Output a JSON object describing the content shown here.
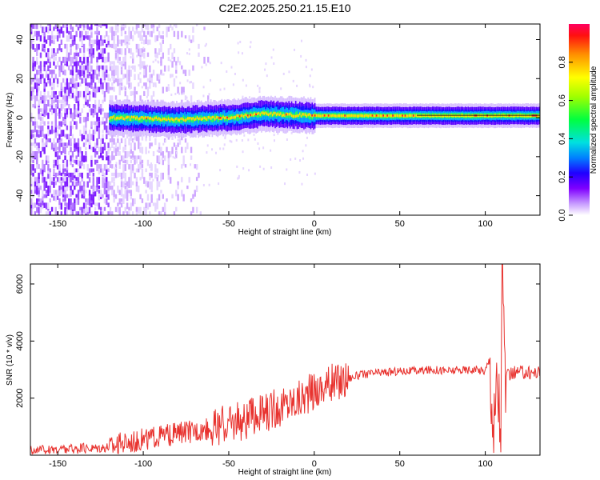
{
  "title": "C2E2.2025.250.21.15.E10",
  "chart_data": [
    {
      "type": "heatmap",
      "xlabel": "Height of straight line (km)",
      "ylabel": "Frequency (Hz)",
      "xlim": [
        -166,
        132
      ],
      "ylim": [
        -50,
        48
      ],
      "xticks": [
        -150,
        -100,
        -50,
        0,
        50,
        100
      ],
      "yticks": [
        -40,
        -20,
        0,
        20,
        40
      ],
      "colorbar": {
        "label": "Normalized spectral amplitude",
        "range": [
          0,
          1
        ],
        "ticks": [
          0.0,
          0.2,
          0.4,
          0.6,
          0.8
        ]
      },
      "description_points": {
        "noise_region_x": [
          -166,
          -120
        ],
        "band_center_hz": [
          {
            "x": -120,
            "f": 0
          },
          {
            "x": -80,
            "f": -1
          },
          {
            "x": -50,
            "f": 0
          },
          {
            "x": -30,
            "f": 2
          },
          {
            "x": 0,
            "f": 1
          },
          {
            "x": 50,
            "f": 1
          },
          {
            "x": 100,
            "f": 1
          },
          {
            "x": 132,
            "f": 1
          }
        ]
      }
    },
    {
      "type": "line",
      "xlabel": "Height of straight line (km)",
      "ylabel": "SNR (10 * v/v)",
      "xlim": [
        -166,
        132
      ],
      "ylim": [
        0,
        6700
      ],
      "xticks": [
        -150,
        -100,
        -50,
        0,
        50,
        100
      ],
      "yticks": [
        2000,
        4000,
        6000
      ],
      "color": "#e8322e",
      "series": [
        {
          "name": "SNR",
          "x": [
            -166,
            -150,
            -130,
            -120,
            -110,
            -100,
            -90,
            -80,
            -70,
            -60,
            -50,
            -40,
            -30,
            -20,
            -10,
            0,
            10,
            20,
            30,
            40,
            50,
            60,
            70,
            80,
            90,
            95,
            100,
            103,
            105,
            107,
            109,
            110,
            112,
            115,
            120,
            125,
            132
          ],
          "values": [
            150,
            200,
            250,
            300,
            450,
            550,
            650,
            750,
            850,
            950,
            1100,
            1250,
            1450,
            1700,
            1950,
            2250,
            2500,
            2700,
            2850,
            2900,
            2950,
            2950,
            3000,
            2950,
            3000,
            3000,
            2950,
            3400,
            600,
            2800,
            900,
            5200,
            2700,
            2850,
            2900,
            2900,
            2900
          ]
        }
      ]
    }
  ]
}
